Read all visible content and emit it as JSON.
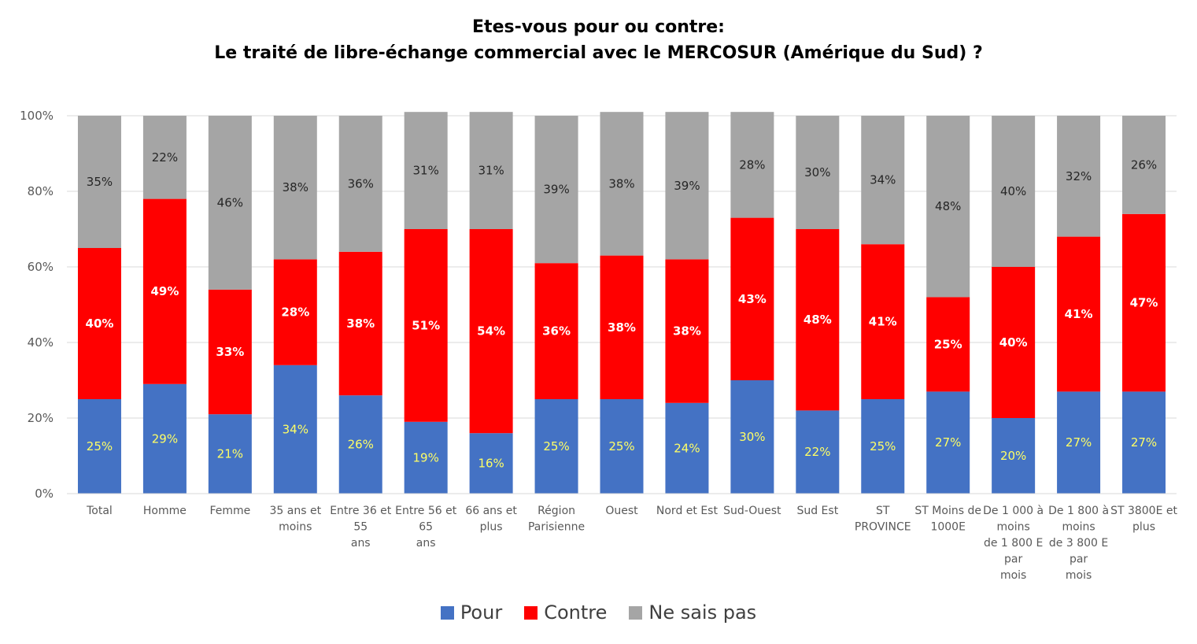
{
  "chart_data": {
    "type": "bar",
    "stacked": true,
    "title_line1": "Etes-vous pour ou contre:",
    "title_line2": "Le traité de libre-échange commercial avec le MERCOSUR (Amérique du Sud) ?",
    "ylim": [
      0,
      100
    ],
    "yticks": [
      "0%",
      "20%",
      "40%",
      "60%",
      "80%",
      "100%"
    ],
    "grid": true,
    "legend_position": "bottom",
    "categories": [
      [
        "Total"
      ],
      [
        "Homme"
      ],
      [
        "Femme"
      ],
      [
        "35 ans et",
        "moins"
      ],
      [
        "Entre 36 et",
        "55",
        "ans"
      ],
      [
        "Entre 56 et",
        "65",
        "ans"
      ],
      [
        "66 ans et",
        "plus"
      ],
      [
        "Région",
        "Parisienne"
      ],
      [
        "Ouest"
      ],
      [
        "Nord et Est"
      ],
      [
        "Sud-Ouest"
      ],
      [
        "Sud Est"
      ],
      [
        "ST",
        "PROVINCE"
      ],
      [
        "ST Moins de",
        "1000E"
      ],
      [
        "De 1 000 à",
        "moins",
        "de 1 800 E",
        "par",
        "mois"
      ],
      [
        "De 1 800 à",
        "moins",
        "de 3 800 E",
        "par",
        "mois"
      ],
      [
        "ST 3800E et",
        "plus"
      ]
    ],
    "series": [
      {
        "name": "Pour",
        "color": "#4472C4",
        "label_color": "#FFFF66",
        "values": [
          25,
          29,
          21,
          34,
          26,
          19,
          16,
          25,
          25,
          24,
          30,
          22,
          25,
          27,
          20,
          27,
          27
        ]
      },
      {
        "name": "Contre",
        "color": "#FF0000",
        "label_color": "#FFFFFF",
        "values": [
          40,
          49,
          33,
          28,
          38,
          51,
          54,
          36,
          38,
          38,
          43,
          48,
          41,
          25,
          40,
          41,
          47
        ]
      },
      {
        "name": "Ne sais pas",
        "color": "#A5A5A5",
        "label_color": "#262626",
        "values": [
          35,
          22,
          46,
          38,
          36,
          31,
          31,
          39,
          38,
          39,
          28,
          30,
          34,
          48,
          40,
          32,
          26
        ]
      }
    ]
  }
}
